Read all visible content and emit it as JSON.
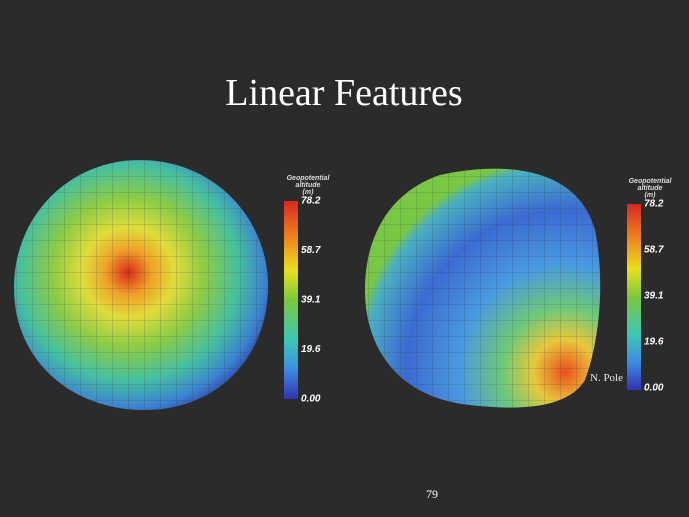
{
  "title": "Linear Features",
  "page_number": "79",
  "panels": [
    {
      "colorbar": {
        "label_lines": [
          "Geopotential",
          "altitude",
          "(m)"
        ],
        "ticks": [
          "78.2",
          "58.7",
          "39.1",
          "19.6",
          "0.00"
        ]
      }
    },
    {
      "colorbar": {
        "label_lines": [
          "Geopotential",
          "altitude",
          "(m)"
        ],
        "ticks": [
          "78.2",
          "58.7",
          "39.1",
          "19.6",
          "0.00"
        ]
      },
      "annotation": "N. Pole"
    }
  ]
}
